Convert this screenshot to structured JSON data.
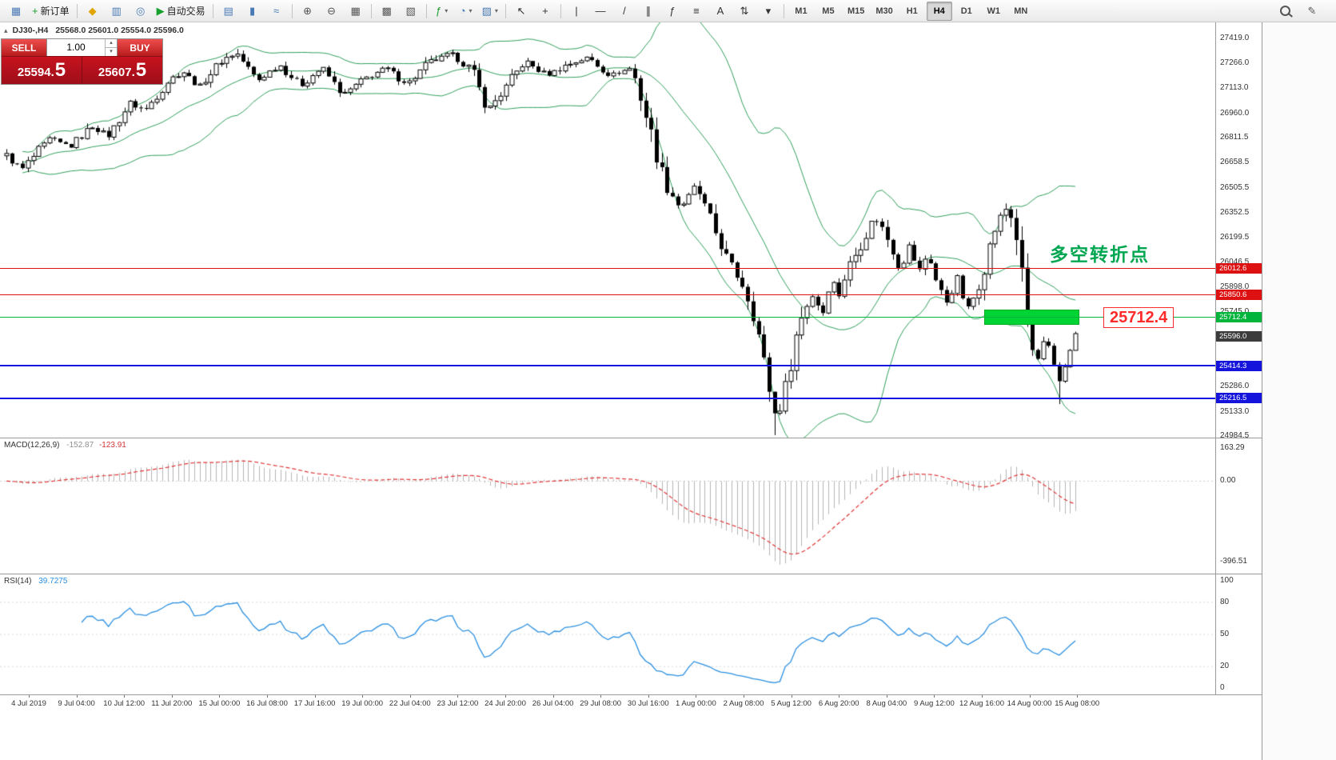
{
  "toolbar": {
    "groups": [
      {
        "items": [
          {
            "name": "charts-icon-button",
            "glyph": "▦",
            "color": "#4a7ab5"
          },
          {
            "name": "new-order-button",
            "glyph": "+",
            "color": "#1a9c2e",
            "label": "新订单"
          }
        ]
      },
      {
        "items": [
          {
            "name": "profiles-button",
            "glyph": "◆",
            "color": "#e0a500"
          },
          {
            "name": "market-watch-button",
            "glyph": "▥",
            "color": "#4a7ab5"
          },
          {
            "name": "navigator-button",
            "glyph": "◎",
            "color": "#4a7ab5"
          },
          {
            "name": "autotrading-button",
            "glyph": "▶",
            "color": "#17a02c",
            "label": "自动交易"
          }
        ]
      },
      {
        "items": [
          {
            "name": "bar-chart-button",
            "glyph": "▤",
            "color": "#4a7ab5"
          },
          {
            "name": "candlestick-chart-button",
            "glyph": "▮",
            "color": "#4a7ab5"
          },
          {
            "name": "line-chart-button",
            "glyph": "≈",
            "color": "#4a7ab5"
          }
        ]
      },
      {
        "items": [
          {
            "name": "zoom-in-button",
            "glyph": "⊕",
            "color": "#555555"
          },
          {
            "name": "zoom-out-button",
            "glyph": "⊖",
            "color": "#555555"
          },
          {
            "name": "tile-windows-button",
            "glyph": "▦",
            "color": "#555555"
          }
        ]
      },
      {
        "items": [
          {
            "name": "auto-arrange-button",
            "glyph": "▩",
            "color": "#555555"
          },
          {
            "name": "cascade-windows-button",
            "glyph": "▧",
            "color": "#555555"
          }
        ]
      },
      {
        "items": [
          {
            "name": "indicators-dropdown",
            "glyph": "ƒ",
            "color": "#1a9c2e",
            "dropdown": true
          },
          {
            "name": "periods-dropdown",
            "glyph": "◔",
            "color": "#4a7ab5",
            "dropdown": true
          },
          {
            "name": "templates-dropdown",
            "glyph": "▨",
            "color": "#4a7ab5",
            "dropdown": true
          }
        ]
      },
      {
        "items": [
          {
            "name": "cursor-button",
            "glyph": "↖",
            "color": "#333333"
          },
          {
            "name": "crosshair-button",
            "glyph": "+",
            "color": "#333333"
          }
        ]
      },
      {
        "items": [
          {
            "name": "vertical-line-button",
            "glyph": "|",
            "color": "#333333"
          },
          {
            "name": "horizontal-line-button",
            "glyph": "—",
            "color": "#333333"
          },
          {
            "name": "trendline-button",
            "glyph": "/",
            "color": "#333333"
          },
          {
            "name": "equidistant-channel-button",
            "glyph": "∥",
            "color": "#333333"
          },
          {
            "name": "fibonacci-button",
            "glyph": "ƒ",
            "color": "#333333"
          },
          {
            "name": "shapes-button",
            "glyph": "≡",
            "color": "#333333"
          },
          {
            "name": "text-label-button",
            "glyph": "A",
            "color": "#333333"
          },
          {
            "name": "arrows-button",
            "glyph": "⇅",
            "color": "#333333"
          },
          {
            "name": "objects-more-dropdown",
            "glyph": "▾",
            "color": "#333333"
          }
        ]
      }
    ],
    "timeframes": [
      "M1",
      "M5",
      "M15",
      "M30",
      "H1",
      "H4",
      "D1",
      "W1",
      "MN"
    ],
    "active_timeframe": "H4"
  },
  "chart": {
    "symbol": "DJ30-,H4",
    "ohlc": "25568.0 25601.0 25554.0 25596.0",
    "toggle_glyph": "▴"
  },
  "trade_panel": {
    "sell_label": "SELL",
    "buy_label": "BUY",
    "lot": "1.00",
    "spin_up": "▴",
    "spin_down": "▾",
    "sell_price": "25594.",
    "sell_price_frac": "5",
    "buy_price": "25607.",
    "buy_price_frac": "5"
  },
  "indicators": {
    "macd_name": "MACD(12,26,9)",
    "macd_value_1": "-152.87",
    "macd_value_2": "-123.91",
    "rsi_name": "RSI(14)",
    "rsi_value": "39.7275"
  },
  "annotation": {
    "text": "多空转折点",
    "color": "#00a650"
  },
  "price_label": {
    "text": "25712.4",
    "color": "#ff2a2a"
  },
  "highlight_rect": {
    "t1": 0.916,
    "price": 25712.4,
    "half_height": 45,
    "color": "#00d435"
  },
  "levels": [
    {
      "name": "resistance-1",
      "price": 26012.6,
      "label": "26012.6",
      "color": "#dd1111",
      "width": 1
    },
    {
      "name": "resistance-2",
      "price": 25850.6,
      "label": "25850.6",
      "color": "#dd1111",
      "width": 1
    },
    {
      "name": "pivot-green",
      "price": 25712.4,
      "label": "25712.4",
      "color": "#00b43c",
      "width": 1
    },
    {
      "name": "current-price",
      "price": 25596.0,
      "label": "25596.0",
      "color": "#3c3c3c",
      "width": 0
    },
    {
      "name": "support-1",
      "price": 25414.3,
      "label": "25414.3",
      "color": "#1414dd",
      "width": 2
    },
    {
      "name": "support-2",
      "price": 25216.5,
      "label": "25216.5",
      "color": "#1414dd",
      "width": 2
    }
  ],
  "axis": {
    "price_ticks": [
      27419.0,
      27266.0,
      27113.0,
      26960.0,
      26811.5,
      26658.5,
      26505.5,
      26352.5,
      26199.5,
      26046.5,
      25898.0,
      25745.0,
      25286.0,
      25133.0,
      24984.5
    ],
    "macd_ticks": [
      163.29,
      0,
      -396.51
    ],
    "rsi_ticks": [
      100,
      80,
      50,
      20,
      0
    ],
    "time_labels": [
      "4 Jul 2019",
      "9 Jul 04:00",
      "10 Jul 12:00",
      "11 Jul 20:00",
      "15 Jul 00:00",
      "16 Jul 08:00",
      "17 Jul 16:00",
      "19 Jul 00:00",
      "22 Jul 04:00",
      "23 Jul 12:00",
      "24 Jul 20:00",
      "26 Jul 04:00",
      "29 Jul 08:00",
      "30 Jul 16:00",
      "1 Aug 00:00",
      "2 Aug 08:00",
      "5 Aug 12:00",
      "6 Aug 20:00",
      "8 Aug 04:00",
      "9 Aug 12:00",
      "12 Aug 16:00",
      "14 Aug 00:00",
      "15 Aug 08:00"
    ]
  },
  "chart_data": {
    "type": "candlestick",
    "symbol": "DJ30-",
    "timeframe": "H4",
    "current_ohlc": {
      "open": 25568.0,
      "high": 25601.0,
      "low": 25554.0,
      "close": 25596.0
    },
    "bid": 25594.5,
    "ask": 25607.5,
    "price_axis_range": [
      24984.5,
      27419.0
    ],
    "candles_count": 200,
    "bollinger": {
      "period": 20,
      "dev": 2
    },
    "price_anchors": [
      [
        0,
        26700
      ],
      [
        0.015,
        26620
      ],
      [
        0.04,
        26800
      ],
      [
        0.06,
        26760
      ],
      [
        0.08,
        26880
      ],
      [
        0.095,
        26820
      ],
      [
        0.115,
        27020
      ],
      [
        0.13,
        26980
      ],
      [
        0.15,
        27150
      ],
      [
        0.165,
        27220
      ],
      [
        0.18,
        27120
      ],
      [
        0.2,
        27280
      ],
      [
        0.215,
        27330
      ],
      [
        0.235,
        27160
      ],
      [
        0.255,
        27260
      ],
      [
        0.275,
        27130
      ],
      [
        0.295,
        27240
      ],
      [
        0.315,
        27070
      ],
      [
        0.335,
        27170
      ],
      [
        0.355,
        27240
      ],
      [
        0.375,
        27140
      ],
      [
        0.395,
        27270
      ],
      [
        0.415,
        27320
      ],
      [
        0.435,
        27230
      ],
      [
        0.45,
        26980
      ],
      [
        0.465,
        27100
      ],
      [
        0.485,
        27280
      ],
      [
        0.505,
        27190
      ],
      [
        0.525,
        27260
      ],
      [
        0.545,
        27300
      ],
      [
        0.565,
        27190
      ],
      [
        0.585,
        27240
      ],
      [
        0.6,
        26900
      ],
      [
        0.615,
        26550
      ],
      [
        0.63,
        26380
      ],
      [
        0.645,
        26520
      ],
      [
        0.66,
        26280
      ],
      [
        0.675,
        26050
      ],
      [
        0.69,
        25900
      ],
      [
        0.7,
        25720
      ],
      [
        0.71,
        25380
      ],
      [
        0.72,
        25080
      ],
      [
        0.728,
        25260
      ],
      [
        0.737,
        25560
      ],
      [
        0.746,
        25760
      ],
      [
        0.755,
        25860
      ],
      [
        0.763,
        25720
      ],
      [
        0.771,
        25950
      ],
      [
        0.779,
        25850
      ],
      [
        0.787,
        26010
      ],
      [
        0.795,
        26110
      ],
      [
        0.803,
        26210
      ],
      [
        0.812,
        26330
      ],
      [
        0.82,
        26250
      ],
      [
        0.828,
        26140
      ],
      [
        0.836,
        26000
      ],
      [
        0.845,
        26160
      ],
      [
        0.853,
        25980
      ],
      [
        0.862,
        26110
      ],
      [
        0.871,
        25900
      ],
      [
        0.88,
        25800
      ],
      [
        0.889,
        25960
      ],
      [
        0.898,
        25750
      ],
      [
        0.907,
        25860
      ],
      [
        0.916,
        26060
      ],
      [
        0.925,
        26260
      ],
      [
        0.934,
        26380
      ],
      [
        0.943,
        26300
      ],
      [
        0.951,
        25890
      ],
      [
        0.958,
        25520
      ],
      [
        0.965,
        25450
      ],
      [
        0.972,
        25590
      ],
      [
        0.979,
        25420
      ],
      [
        0.986,
        25300
      ],
      [
        0.993,
        25500
      ],
      [
        1,
        25596
      ]
    ],
    "extremes": [
      {
        "t": 0.72,
        "low": 24990
      },
      {
        "t": 0.986,
        "low": 25180
      },
      {
        "t": 0.215,
        "high": 27355
      },
      {
        "t": 0.934,
        "high": 26400
      }
    ],
    "horizontal_levels": [
      26012.6,
      25850.6,
      25712.4,
      25414.3,
      25216.5
    ],
    "macd": {
      "label": "MACD(12,26,9)",
      "values": [
        -152.87,
        -123.91
      ],
      "axis": [
        163.29,
        0.0,
        -396.51
      ]
    },
    "rsi": {
      "label": "RSI(14)",
      "value": 39.7275,
      "axis": [
        100,
        80,
        50,
        20,
        0
      ]
    },
    "colors": {
      "bollinger": "#2f9e5a",
      "candle_up": "#ffffff",
      "candle_down": "#000000",
      "macd_histogram": "#b4b4b4",
      "macd_signal": "#e03535",
      "rsi_line": "#2a8fe0"
    }
  }
}
